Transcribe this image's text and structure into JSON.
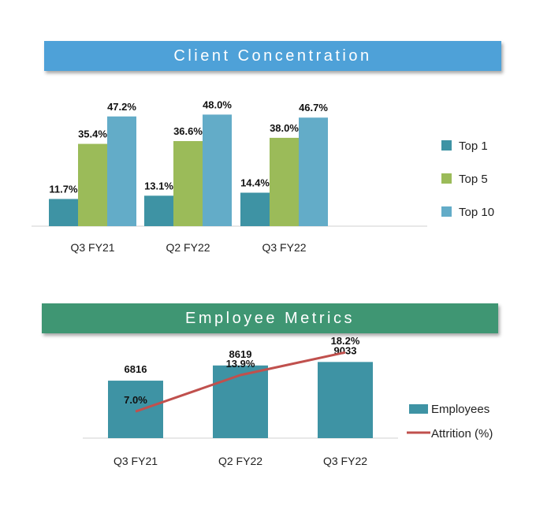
{
  "colors": {
    "banner1": "#4ea1d8",
    "banner2": "#3f9673",
    "top1": "#3e93a4",
    "top5": "#9bbb59",
    "top10": "#63acc8",
    "employees": "#3e93a4",
    "attrition": "#c0504d"
  },
  "chart_data": [
    {
      "type": "bar",
      "title": "Client Concentration",
      "categories": [
        "Q3 FY21",
        "Q2 FY22",
        "Q3 FY22"
      ],
      "series": [
        {
          "name": "Top 1",
          "values": [
            11.7,
            13.1,
            14.4
          ],
          "labels": [
            "11.7%",
            "13.1%",
            "14.4%"
          ]
        },
        {
          "name": "Top 5",
          "values": [
            35.4,
            36.6,
            38.0
          ],
          "labels": [
            "35.4%",
            "36.6%",
            "38.0%"
          ]
        },
        {
          "name": "Top 10",
          "values": [
            47.2,
            48.0,
            46.7
          ],
          "labels": [
            "47.2%",
            "48.0%",
            "46.7%"
          ]
        }
      ],
      "ylim": [
        0,
        55
      ],
      "legend": "right"
    },
    {
      "type": "bar+line",
      "title": "Employee Metrics",
      "categories": [
        "Q3 FY21",
        "Q2 FY22",
        "Q3 FY22"
      ],
      "series": [
        {
          "name": "Employees",
          "type": "bar",
          "values": [
            6816,
            8619,
            9033
          ],
          "labels": [
            "6816",
            "8619",
            "9033"
          ]
        },
        {
          "name": "Attrition (%)",
          "type": "line",
          "values": [
            7.0,
            13.9,
            18.2
          ],
          "labels": [
            "7.0%",
            "13.9%",
            "18.2%"
          ]
        }
      ],
      "legend": "right"
    }
  ]
}
